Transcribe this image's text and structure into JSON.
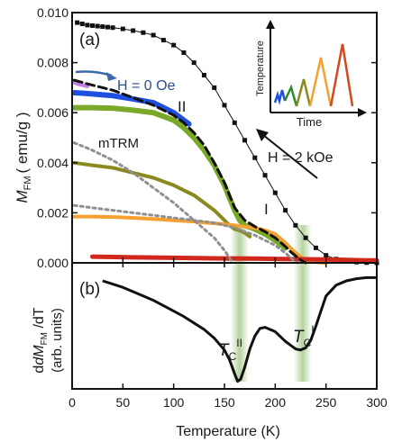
{
  "colors": {
    "black": "#111111",
    "blue": "#1f4fe0",
    "violet": "#c080e0",
    "green": "#7aa828",
    "olive": "#8a8a20",
    "orange": "#f5a030",
    "red": "#d0281c",
    "gray": "#8f8f8f",
    "band": "#a8cc90",
    "arrow_blue": "#3a6aa8"
  },
  "chart_data": [
    {
      "panel_label": "(a)",
      "type": "line",
      "xlabel": "Temperature (K)",
      "ylabel_main": "M",
      "ylabel_sub": "FM",
      "ylabel_unit": "( emu/g )",
      "xlim": [
        0,
        300
      ],
      "ylim": [
        0,
        0.01
      ],
      "xticks": [
        "0",
        "50",
        "100",
        "150",
        "200",
        "250",
        "300"
      ],
      "yticks": [
        "0.000",
        "0.002",
        "0.004",
        "0.006",
        "0.008",
        "0.010"
      ],
      "series": [
        {
          "key": "black_2kOe",
          "x": [
            5,
            10,
            15,
            20,
            25,
            30,
            35,
            40,
            50,
            60,
            70,
            80,
            90,
            100,
            110,
            120,
            130,
            140,
            150,
            160,
            170,
            180,
            190,
            200,
            210,
            220,
            230,
            240,
            250,
            260,
            270,
            280,
            290,
            300
          ],
          "y": [
            0.0096,
            0.00955,
            0.0095,
            0.00948,
            0.00946,
            0.00944,
            0.00942,
            0.0094,
            0.00935,
            0.00928,
            0.0092,
            0.0091,
            0.0089,
            0.0087,
            0.0084,
            0.008,
            0.0075,
            0.007,
            0.0063,
            0.0056,
            0.0049,
            0.0042,
            0.0035,
            0.0028,
            0.0021,
            0.0015,
            0.001,
            0.0006,
            0.0003,
            0.00015,
            7e-05,
            3e-05,
            1e-05,
            0.0
          ]
        },
        {
          "key": "violet",
          "x": [
            2,
            5,
            10,
            15
          ],
          "y": [
            0.0072,
            0.00715,
            0.0071,
            0.00705
          ]
        },
        {
          "key": "blue",
          "x": [
            2,
            10,
            20,
            40,
            60,
            80,
            90,
            100,
            110,
            115
          ],
          "y": [
            0.0068,
            0.00678,
            0.00675,
            0.00668,
            0.00655,
            0.0064,
            0.0062,
            0.006,
            0.0057,
            0.00555
          ]
        },
        {
          "key": "green",
          "x": [
            2,
            20,
            40,
            60,
            80,
            100,
            110,
            120,
            130,
            140,
            150,
            155,
            160,
            165,
            170,
            180,
            190,
            200,
            210
          ],
          "y": [
            0.0062,
            0.0062,
            0.00618,
            0.0061,
            0.006,
            0.0057,
            0.0054,
            0.005,
            0.0045,
            0.0039,
            0.0031,
            0.0026,
            0.0021,
            0.0017,
            0.0015,
            0.00135,
            0.00115,
            0.0009,
            0.0006
          ]
        },
        {
          "key": "olive",
          "x": [
            2,
            20,
            40,
            60,
            80,
            100,
            120,
            140,
            150,
            155,
            160,
            165,
            170,
            175
          ],
          "y": [
            0.004,
            0.0039,
            0.0038,
            0.0036,
            0.0034,
            0.0031,
            0.0027,
            0.0021,
            0.0017,
            0.0015,
            0.00135,
            0.0013,
            0.0012,
            0.00105
          ]
        },
        {
          "key": "orange",
          "x": [
            2,
            20,
            40,
            60,
            80,
            100,
            120,
            140,
            160,
            180,
            190,
            200,
            210,
            215,
            220,
            225,
            230,
            240,
            250
          ],
          "y": [
            0.00185,
            0.00185,
            0.00183,
            0.0018,
            0.00175,
            0.0017,
            0.00165,
            0.00158,
            0.0015,
            0.0014,
            0.0013,
            0.00115,
            0.0008,
            0.0006,
            0.0004,
            0.00025,
            0.0001,
            3e-05,
            0.0
          ]
        },
        {
          "key": "red",
          "x": [
            20,
            60,
            100,
            140,
            180,
            200,
            240,
            270,
            290,
            300
          ],
          "y": [
            0.00025,
            0.00022,
            0.0002,
            0.00018,
            0.00017,
            0.00016,
            0.00014,
            0.00012,
            0.0001,
            0.0001
          ]
        },
        {
          "key": "fit_dashed",
          "x": [
            2,
            20,
            40,
            60,
            80,
            100,
            110,
            120,
            130,
            140,
            150,
            155,
            160,
            170,
            180,
            190,
            200,
            210,
            215,
            220,
            225,
            230
          ],
          "y": [
            0.0073,
            0.0071,
            0.0069,
            0.0066,
            0.0063,
            0.0059,
            0.0056,
            0.0052,
            0.0047,
            0.004,
            0.0032,
            0.0027,
            0.0022,
            0.0017,
            0.00145,
            0.00125,
            0.001,
            0.00065,
            0.00045,
            0.00028,
            0.00012,
            0.0
          ]
        },
        {
          "key": "mTRM_upper",
          "x": [
            2,
            20,
            40,
            60,
            80,
            100,
            120,
            140,
            150,
            155,
            158
          ],
          "y": [
            0.0048,
            0.0045,
            0.0041,
            0.0036,
            0.003,
            0.0024,
            0.0017,
            0.001,
            0.0005,
            0.0002,
            0.0
          ]
        },
        {
          "key": "mTRM_lower",
          "x": [
            2,
            20,
            40,
            60,
            80,
            100,
            120,
            140,
            160,
            180,
            200,
            210,
            218,
            222
          ],
          "y": [
            0.0023,
            0.0022,
            0.0021,
            0.002,
            0.0019,
            0.0018,
            0.0017,
            0.0016,
            0.0014,
            0.0011,
            0.0007,
            0.0004,
            0.0001,
            0.0
          ]
        }
      ],
      "annotations": {
        "h_zero": "H = 0 Oe",
        "h_two": "H = 2 kOe",
        "mtrm": "mTRM",
        "phase_ii": "II",
        "phase_i": "I",
        "inset_ylabel": "Temperature",
        "inset_xlabel": "Time"
      },
      "bands_x": [
        165,
        227
      ],
      "grid": false
    },
    {
      "panel_label": "(b)",
      "type": "line",
      "ylabel_line1": "dM",
      "ylabel_sub": "FM",
      "ylabel_rest": " /dT",
      "ylabel_line2": "(arb. units)",
      "tc_ii_main": "T",
      "tc_ii_sub": "C",
      "tc_ii_sup": "II",
      "tc_i_main": "T",
      "tc_i_sub": "C",
      "tc_i_sup": "I",
      "x": [
        30,
        40,
        50,
        60,
        70,
        80,
        90,
        100,
        110,
        120,
        130,
        140,
        150,
        155,
        160,
        163,
        166,
        170,
        175,
        180,
        185,
        190,
        200,
        210,
        220,
        225,
        230,
        235,
        240,
        245,
        250,
        260,
        270,
        280,
        290,
        300
      ],
      "y": [
        1.0,
        0.97,
        0.94,
        0.9,
        0.86,
        0.82,
        0.77,
        0.72,
        0.67,
        0.61,
        0.55,
        0.47,
        0.36,
        0.27,
        0.14,
        0.07,
        0.09,
        0.2,
        0.37,
        0.49,
        0.56,
        0.57,
        0.53,
        0.44,
        0.37,
        0.36,
        0.38,
        0.45,
        0.58,
        0.72,
        0.86,
        0.96,
        1.0,
        1.02,
        1.03,
        1.03
      ],
      "ylim": [
        0,
        1.1
      ]
    }
  ]
}
